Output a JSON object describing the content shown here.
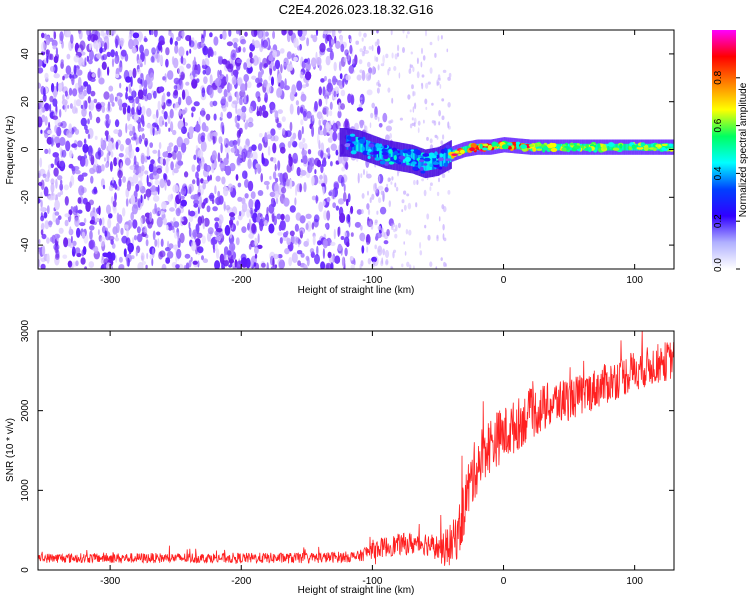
{
  "page_title": "C2E4.2026.023.18.32.G16",
  "chart_data": [
    {
      "type": "heatmap",
      "title": "C2E4.2026.023.18.32.G16",
      "xlabel": "Height of straight line (km)",
      "ylabel": "Frequency (Hz)",
      "xlim": [
        -355,
        130
      ],
      "ylim": [
        -50,
        50
      ],
      "xticks": [
        -300,
        -200,
        -100,
        0,
        100
      ],
      "yticks": [
        -40,
        -20,
        0,
        20,
        40
      ],
      "colorbar": {
        "label": "Normalized spectral amplitude",
        "range": [
          0,
          1
        ],
        "ticks": [
          "0.0",
          "0.2",
          "0.4",
          "0.6",
          "0.8"
        ],
        "tick_values": [
          0,
          0.2,
          0.4,
          0.6,
          0.8
        ],
        "colors": [
          "#ffffff",
          "#b0b0ff",
          "#3000ff",
          "#0040ff",
          "#00ffff",
          "#00ff60",
          "#ffff00",
          "#ff8000",
          "#ff0000",
          "#ff00ff"
        ]
      },
      "signal_track": {
        "x": [
          -120,
          -110,
          -100,
          -90,
          -80,
          -70,
          -60,
          -50,
          -40,
          -30,
          -20,
          -10,
          0,
          20,
          50,
          100,
          130
        ],
        "y": [
          3,
          2,
          0,
          -2,
          -3,
          -4,
          -6,
          -5,
          -2,
          0,
          1,
          1,
          2,
          1,
          1,
          1,
          1
        ]
      },
      "noise_region": {
        "x_from": -355,
        "x_to": -110,
        "y_from": -50,
        "y_to": 50
      }
    },
    {
      "type": "line",
      "xlabel": "Height of straight line (km)",
      "ylabel": "SNR (10 * v/v)",
      "xlim": [
        -355,
        130
      ],
      "ylim": [
        0,
        3000
      ],
      "xticks": [
        -300,
        -200,
        -100,
        0,
        100
      ],
      "yticks": [
        0,
        1000,
        2000,
        3000
      ],
      "color": "#ff2020",
      "trend": {
        "x": [
          -355,
          -150,
          -110,
          -100,
          -80,
          -60,
          -45,
          -38,
          -33,
          -28,
          -22,
          -15,
          -5,
          5,
          20,
          40,
          60,
          80,
          100,
          130
        ],
        "y": [
          150,
          150,
          170,
          260,
          320,
          340,
          250,
          350,
          550,
          950,
          1250,
          1500,
          1650,
          1750,
          1950,
          2100,
          2200,
          2350,
          2500,
          2650
        ]
      },
      "noise_amplitude": {
        "x": [
          -355,
          -110,
          -100,
          -50,
          -30,
          0,
          60,
          130
        ],
        "y": [
          60,
          70,
          120,
          160,
          380,
          350,
          260,
          250
        ]
      }
    }
  ]
}
